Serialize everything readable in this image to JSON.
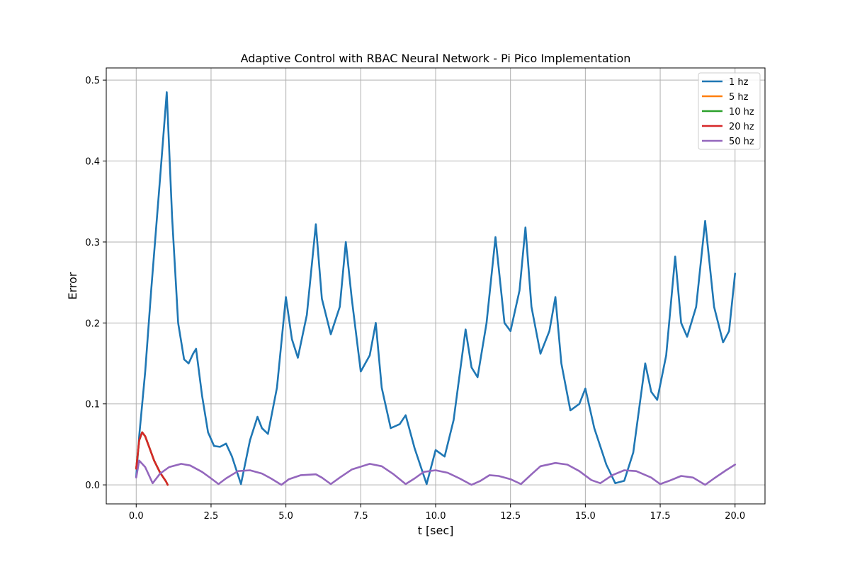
{
  "chart_data": {
    "type": "line",
    "title": "Adaptive Control with RBAC Neural Network - Pi Pico Implementation",
    "xlabel": "t [sec]",
    "ylabel": "Error",
    "xlim": [
      -1.0,
      21.0
    ],
    "ylim": [
      -0.0235,
      0.515
    ],
    "xticks": [
      "0.0",
      "2.5",
      "5.0",
      "7.5",
      "10.0",
      "12.5",
      "15.0",
      "17.5",
      "20.0"
    ],
    "yticks": [
      "0.0",
      "0.1",
      "0.2",
      "0.3",
      "0.4",
      "0.5"
    ],
    "grid": true,
    "legend_position": "top-right",
    "series": [
      {
        "name": "1 hz",
        "color": "#1f77b4",
        "x": [
          0.0,
          0.1,
          0.3,
          0.5,
          0.8,
          1.02,
          1.2,
          1.4,
          1.6,
          1.75,
          1.9,
          2.0,
          2.2,
          2.4,
          2.6,
          2.8,
          3.0,
          3.2,
          3.5,
          3.8,
          4.05,
          4.2,
          4.4,
          4.7,
          5.0,
          5.2,
          5.4,
          5.7,
          6.0,
          6.2,
          6.5,
          6.8,
          7.0,
          7.2,
          7.5,
          7.8,
          8.0,
          8.2,
          8.5,
          8.8,
          9.0,
          9.3,
          9.7,
          10.0,
          10.3,
          10.6,
          11.0,
          11.2,
          11.4,
          11.7,
          12.0,
          12.3,
          12.5,
          12.8,
          13.0,
          13.2,
          13.5,
          13.8,
          14.0,
          14.2,
          14.5,
          14.8,
          15.0,
          15.3,
          15.7,
          16.0,
          16.3,
          16.6,
          17.0,
          17.2,
          17.4,
          17.7,
          18.0,
          18.2,
          18.4,
          18.7,
          19.0,
          19.3,
          19.6,
          19.8,
          20.0
        ],
        "values": [
          0.01,
          0.06,
          0.14,
          0.24,
          0.38,
          0.485,
          0.33,
          0.2,
          0.155,
          0.15,
          0.162,
          0.168,
          0.11,
          0.065,
          0.048,
          0.047,
          0.051,
          0.035,
          0.001,
          0.055,
          0.084,
          0.07,
          0.063,
          0.12,
          0.232,
          0.18,
          0.157,
          0.21,
          0.322,
          0.23,
          0.186,
          0.22,
          0.3,
          0.23,
          0.14,
          0.16,
          0.2,
          0.12,
          0.07,
          0.075,
          0.086,
          0.045,
          0.001,
          0.043,
          0.035,
          0.08,
          0.192,
          0.145,
          0.133,
          0.2,
          0.306,
          0.2,
          0.19,
          0.24,
          0.318,
          0.22,
          0.162,
          0.19,
          0.232,
          0.15,
          0.092,
          0.1,
          0.119,
          0.07,
          0.025,
          0.002,
          0.005,
          0.04,
          0.15,
          0.115,
          0.105,
          0.16,
          0.282,
          0.2,
          0.183,
          0.22,
          0.326,
          0.22,
          0.176,
          0.19,
          0.261
        ]
      },
      {
        "name": "5 hz",
        "color": "#ff7f0e",
        "x": [
          0.0,
          0.1,
          0.2,
          0.3,
          0.45,
          0.6,
          0.8,
          1.0,
          1.05
        ],
        "values": [
          0.02,
          0.055,
          0.065,
          0.06,
          0.045,
          0.03,
          0.015,
          0.004,
          0.0
        ]
      },
      {
        "name": "10 hz",
        "color": "#2ca02c",
        "x": [
          0.0,
          0.1,
          0.2,
          0.3,
          0.45,
          0.6,
          0.8,
          1.0,
          1.05
        ],
        "values": [
          0.02,
          0.055,
          0.065,
          0.06,
          0.045,
          0.03,
          0.015,
          0.004,
          0.0
        ]
      },
      {
        "name": "20 hz",
        "color": "#d62728",
        "x": [
          0.0,
          0.1,
          0.2,
          0.3,
          0.45,
          0.6,
          0.8,
          1.0,
          1.05
        ],
        "values": [
          0.02,
          0.055,
          0.065,
          0.06,
          0.045,
          0.03,
          0.015,
          0.004,
          0.0
        ]
      },
      {
        "name": "50 hz",
        "color": "#9467bd",
        "x": [
          0.0,
          0.1,
          0.3,
          0.55,
          0.8,
          1.1,
          1.5,
          1.8,
          2.2,
          2.5,
          2.75,
          3.0,
          3.4,
          3.8,
          4.2,
          4.5,
          4.85,
          5.1,
          5.5,
          6.0,
          6.2,
          6.5,
          6.8,
          7.2,
          7.8,
          8.2,
          8.6,
          9.0,
          9.3,
          9.6,
          10.0,
          10.4,
          10.8,
          11.2,
          11.5,
          11.8,
          12.1,
          12.5,
          12.85,
          13.2,
          13.5,
          14.0,
          14.4,
          14.8,
          15.2,
          15.5,
          15.9,
          16.3,
          16.7,
          17.2,
          17.5,
          17.8,
          18.2,
          18.6,
          19.0,
          19.3,
          19.7,
          20.0
        ],
        "values": [
          0.009,
          0.03,
          0.022,
          0.002,
          0.014,
          0.022,
          0.026,
          0.024,
          0.016,
          0.008,
          0.001,
          0.008,
          0.017,
          0.018,
          0.014,
          0.008,
          0.0,
          0.007,
          0.012,
          0.013,
          0.009,
          0.001,
          0.009,
          0.019,
          0.026,
          0.023,
          0.013,
          0.001,
          0.008,
          0.016,
          0.018,
          0.015,
          0.008,
          0.0,
          0.005,
          0.012,
          0.011,
          0.007,
          0.001,
          0.013,
          0.023,
          0.027,
          0.025,
          0.017,
          0.006,
          0.002,
          0.012,
          0.018,
          0.017,
          0.009,
          0.001,
          0.005,
          0.011,
          0.009,
          0.0,
          0.008,
          0.018,
          0.025
        ]
      }
    ]
  }
}
